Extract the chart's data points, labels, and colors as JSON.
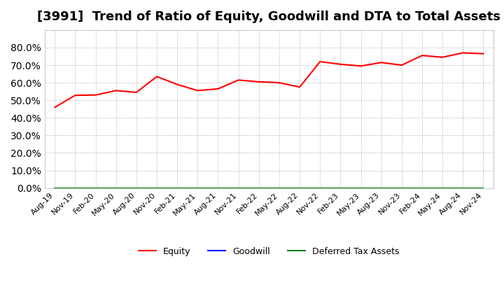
{
  "title": "[3991]  Trend of Ratio of Equity, Goodwill and DTA to Total Assets",
  "x_labels": [
    "Aug-19",
    "Nov-19",
    "Feb-20",
    "May-20",
    "Aug-20",
    "Nov-20",
    "Feb-21",
    "May-21",
    "Aug-21",
    "Nov-21",
    "Feb-22",
    "May-22",
    "Aug-22",
    "Nov-22",
    "Feb-23",
    "May-23",
    "Aug-23",
    "Nov-23",
    "Feb-24",
    "May-24",
    "Aug-24",
    "Nov-24"
  ],
  "equity": [
    0.46,
    0.528,
    0.53,
    0.555,
    0.545,
    0.635,
    0.59,
    0.555,
    0.565,
    0.615,
    0.605,
    0.6,
    0.575,
    0.72,
    0.705,
    0.695,
    0.715,
    0.7,
    0.755,
    0.745,
    0.77,
    0.765
  ],
  "goodwill": [
    0.0,
    0.0,
    0.0,
    0.0,
    0.0,
    0.0,
    0.0,
    0.0,
    0.0,
    0.0,
    0.0,
    0.0,
    0.0,
    0.0,
    0.0,
    0.0,
    0.0,
    0.0,
    0.0,
    0.0,
    0.0,
    0.0
  ],
  "dta": [
    0.0,
    0.0,
    0.0,
    0.0,
    0.0,
    0.0,
    0.0,
    0.0,
    0.0,
    0.0,
    0.0,
    0.0,
    0.0,
    0.0,
    0.0,
    0.0,
    0.0,
    0.0,
    0.0,
    0.0,
    0.0,
    0.0
  ],
  "equity_color": "#ff0000",
  "goodwill_color": "#0000ff",
  "dta_color": "#008000",
  "ylim": [
    0.0,
    0.9
  ],
  "yticks": [
    0.0,
    0.1,
    0.2,
    0.3,
    0.4,
    0.5,
    0.6,
    0.7,
    0.8
  ],
  "background_color": "#ffffff",
  "plot_bg_color": "#ffffff",
  "grid_color": "#aaaaaa",
  "title_fontsize": 13,
  "legend_labels": [
    "Equity",
    "Goodwill",
    "Deferred Tax Assets"
  ]
}
